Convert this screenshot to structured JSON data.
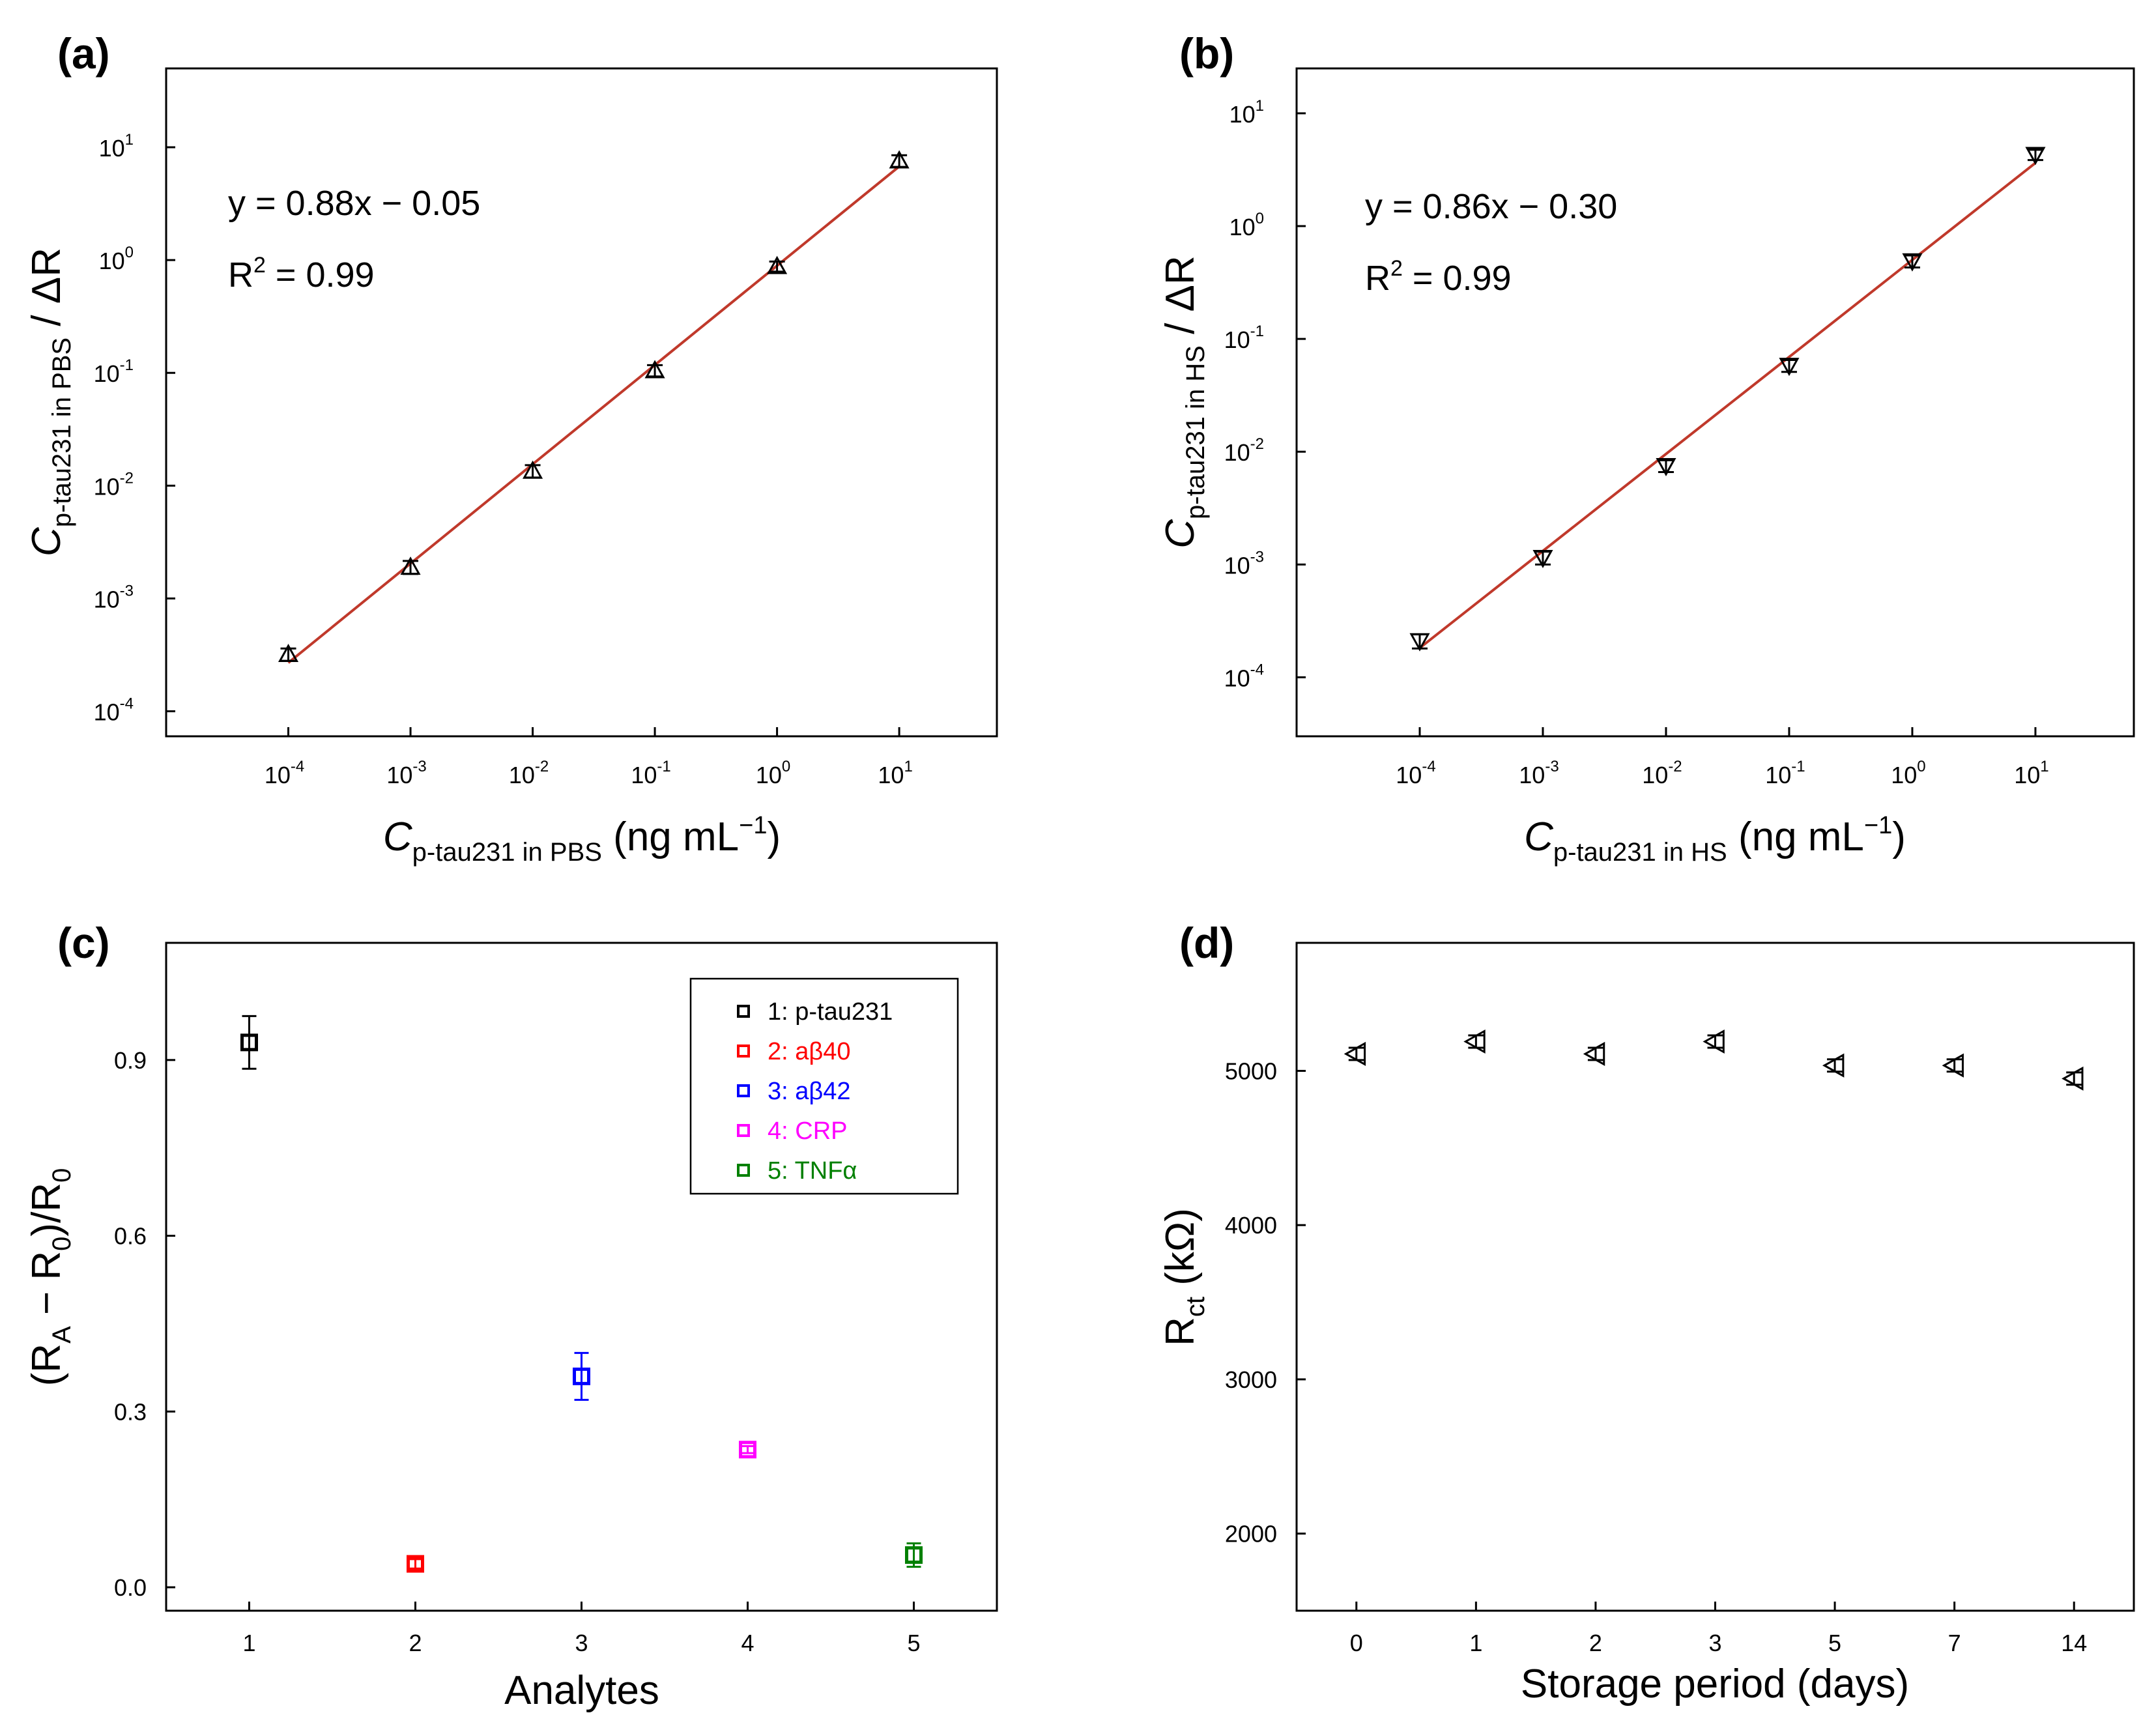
{
  "chart_data": [
    {
      "type": "scatter",
      "panel": "(a)",
      "xscale": "log",
      "yscale": "log",
      "x": [
        0.0001,
        0.001,
        0.01,
        0.1,
        1,
        10
      ],
      "y": [
        0.00032,
        0.0019,
        0.0135,
        0.105,
        0.88,
        7.6
      ],
      "yerr": [
        4e-05,
        0.00025,
        0.0017,
        0.012,
        0.09,
        0.9
      ],
      "fit": {
        "slope": 0.88,
        "intercept": -0.05,
        "x_range": [
          0.0001,
          10
        ],
        "color": "#c0392b"
      },
      "xlim": [
        1e-05,
        63
      ],
      "ylim": [
        6e-05,
        50
      ],
      "xticks": [
        0.0001,
        0.001,
        0.01,
        0.1,
        1,
        10
      ],
      "yticks": [
        0.0001,
        0.001,
        0.01,
        0.1,
        1,
        10
      ],
      "xtick_labels": [
        [
          "10",
          "-4"
        ],
        [
          "10",
          "-3"
        ],
        [
          "10",
          "-2"
        ],
        [
          "10",
          "-1"
        ],
        [
          "10",
          "0"
        ],
        [
          "10",
          "1"
        ]
      ],
      "ytick_labels": [
        [
          "10",
          "-4"
        ],
        [
          "10",
          "-3"
        ],
        [
          "10",
          "-2"
        ],
        [
          "10",
          "-1"
        ],
        [
          "10",
          "0"
        ],
        [
          "10",
          "1"
        ]
      ],
      "xlabel": {
        "symbol": "C",
        "subscript": "p-tau231 in PBS",
        "unit": " (ng mL",
        "unit_sup": "−1",
        "unit_end": ")"
      },
      "ylabel": {
        "symbol": "C",
        "subscript": "p-tau231 in PBS",
        "suffix": " / ΔR"
      },
      "equation": "y = 0.88x − 0.05",
      "r2": {
        "base": "R",
        "sup": "2",
        "value": " = 0.99"
      },
      "marker": "up-triangle",
      "marker_color": "#000000"
    },
    {
      "type": "scatter",
      "panel": "(b)",
      "xscale": "log",
      "yscale": "log",
      "x": [
        0.0001,
        0.001,
        0.01,
        0.1,
        1,
        10
      ],
      "y": [
        0.00021,
        0.00115,
        0.0075,
        0.058,
        0.49,
        4.3
      ],
      "yerr": [
        3e-05,
        0.00015,
        0.0009,
        0.007,
        0.06,
        0.45
      ],
      "fit": {
        "slope": 0.86,
        "intercept": -0.3,
        "x_range": [
          0.0001,
          10
        ],
        "color": "#c0392b"
      },
      "xlim": [
        1e-05,
        63
      ],
      "ylim": [
        3e-05,
        25
      ],
      "xticks": [
        0.0001,
        0.001,
        0.01,
        0.1,
        1,
        10
      ],
      "yticks": [
        0.0001,
        0.001,
        0.01,
        0.1,
        1,
        10
      ],
      "xtick_labels": [
        [
          "10",
          "-4"
        ],
        [
          "10",
          "-3"
        ],
        [
          "10",
          "-2"
        ],
        [
          "10",
          "-1"
        ],
        [
          "10",
          "0"
        ],
        [
          "10",
          "1"
        ]
      ],
      "ytick_labels": [
        [
          "10",
          "-4"
        ],
        [
          "10",
          "-3"
        ],
        [
          "10",
          "-2"
        ],
        [
          "10",
          "-1"
        ],
        [
          "10",
          "0"
        ],
        [
          "10",
          "1"
        ]
      ],
      "xlabel": {
        "symbol": "C",
        "subscript": "p-tau231 in HS",
        "unit": " (ng mL",
        "unit_sup": "−1",
        "unit_end": ")"
      },
      "ylabel": {
        "symbol": "C",
        "subscript": "p-tau231 in HS",
        "suffix": " / ΔR"
      },
      "equation": "y = 0.86x − 0.30",
      "r2": {
        "base": "R",
        "sup": "2",
        "value": " = 0.99"
      },
      "marker": "down-triangle",
      "marker_color": "#000000"
    },
    {
      "type": "scatter",
      "panel": "(c)",
      "categories": [
        "1",
        "2",
        "3",
        "4",
        "5"
      ],
      "values": [
        0.93,
        0.04,
        0.36,
        0.235,
        0.055
      ],
      "errors": [
        0.045,
        0.008,
        0.04,
        0.006,
        0.02
      ],
      "colors": [
        "#000000",
        "#ff0000",
        "#0000ff",
        "#ff00ff",
        "#008000"
      ],
      "xlim": [
        0.5,
        5.5
      ],
      "ylim": [
        -0.04,
        1.1
      ],
      "yticks": [
        0.0,
        0.3,
        0.6,
        0.9
      ],
      "ytick_labels": [
        "0.0",
        "0.3",
        "0.6",
        "0.9"
      ],
      "xlabel": "Analytes",
      "ylabel": {
        "p1": "(R",
        "s1": "A",
        "p2": " − R",
        "s2": "0",
        "p3": ")/R",
        "s3": "0"
      },
      "legend": [
        "1: p-tau231",
        "2: aβ40",
        "3: aβ42",
        "4: CRP",
        "5: TNFα"
      ],
      "legend_position": "top-right",
      "marker": "square"
    },
    {
      "type": "scatter",
      "panel": "(d)",
      "categories": [
        "0",
        "1",
        "2",
        "3",
        "5",
        "7",
        "14"
      ],
      "values": [
        5110,
        5190,
        5110,
        5190,
        5035,
        5035,
        4950
      ],
      "errors": [
        40,
        40,
        40,
        40,
        40,
        40,
        40
      ],
      "xlim": [
        -0.5,
        6.5
      ],
      "ylim": [
        1500,
        5830
      ],
      "yticks": [
        2000,
        3000,
        4000,
        5000
      ],
      "ytick_labels": [
        "2000",
        "3000",
        "4000",
        "5000"
      ],
      "xlabel": "Storage period (days)",
      "ylabel": {
        "base": "R",
        "sub": "ct",
        "unit": " (kΩ)"
      },
      "marker": "left-triangle",
      "marker_color": "#000000"
    }
  ]
}
